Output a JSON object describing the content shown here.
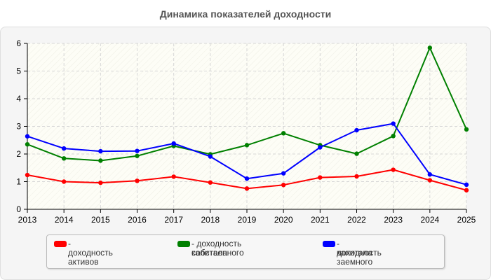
{
  "chart_data": {
    "type": "line",
    "title": "Динамика показателей доходности",
    "x": [
      "2013",
      "2014",
      "2015",
      "2016",
      "2017",
      "2018",
      "2019",
      "2020",
      "2021",
      "2022",
      "2023",
      "2024",
      "2025"
    ],
    "ylim": [
      0,
      6
    ],
    "yticks": [
      "0",
      "1",
      "2",
      "3",
      "4",
      "5",
      "6"
    ],
    "grid": true,
    "legend_position": "bottom",
    "series": [
      {
        "name": "- доходность активов",
        "color": "#ff0000",
        "values": [
          1.24,
          1.0,
          0.96,
          1.03,
          1.18,
          0.97,
          0.75,
          0.88,
          1.15,
          1.19,
          1.43,
          1.05,
          0.69
        ]
      },
      {
        "name": "- доходность собственного капитала",
        "color": "#008000",
        "values": [
          2.35,
          1.84,
          1.76,
          1.93,
          2.29,
          1.99,
          2.32,
          2.75,
          2.32,
          2.01,
          2.65,
          5.84,
          2.89
        ]
      },
      {
        "name": "- доходность заемного капитала",
        "color": "#0000ff",
        "values": [
          2.64,
          2.2,
          2.1,
          2.11,
          2.38,
          1.91,
          1.11,
          1.3,
          2.24,
          2.86,
          3.1,
          1.26,
          0.89
        ]
      }
    ]
  },
  "legend": {
    "item1_line1": "- доходность активов",
    "item2_line1": "- доходность собственного",
    "item2_line2": "капитала",
    "item3_line1": "- доходность заемного",
    "item3_line2": "капитала"
  }
}
